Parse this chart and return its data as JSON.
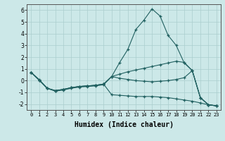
{
  "xlabel": "Humidex (Indice chaleur)",
  "ylabel": "",
  "xlim": [
    -0.5,
    23.5
  ],
  "ylim": [
    -2.5,
    6.5
  ],
  "yticks": [
    -2,
    -1,
    0,
    1,
    2,
    3,
    4,
    5,
    6
  ],
  "xticks": [
    0,
    1,
    2,
    3,
    4,
    5,
    6,
    7,
    8,
    9,
    10,
    11,
    12,
    13,
    14,
    15,
    16,
    17,
    18,
    19,
    20,
    21,
    22,
    23
  ],
  "background_color": "#cce8e8",
  "grid_color": "#aacece",
  "line_color": "#206060",
  "lines": [
    {
      "x": [
        0,
        1,
        2,
        3,
        4,
        5,
        6,
        7,
        8,
        9,
        10,
        11,
        12,
        13,
        14,
        15,
        16,
        17,
        18,
        19,
        20,
        21,
        22,
        23
      ],
      "y": [
        0.7,
        0.1,
        -0.65,
        -0.9,
        -0.8,
        -0.65,
        -0.55,
        -0.5,
        -0.45,
        -0.35,
        0.35,
        1.55,
        2.65,
        4.35,
        5.15,
        6.1,
        5.5,
        3.85,
        3.0,
        1.5,
        0.85,
        -1.45,
        -2.05,
        -2.15
      ]
    },
    {
      "x": [
        0,
        1,
        2,
        3,
        4,
        5,
        6,
        7,
        8,
        9,
        10,
        11,
        12,
        13,
        14,
        15,
        16,
        17,
        18,
        19,
        20,
        21,
        22,
        23
      ],
      "y": [
        0.7,
        0.05,
        -0.65,
        -0.85,
        -0.75,
        -0.6,
        -0.5,
        -0.45,
        -0.4,
        -0.3,
        0.35,
        0.55,
        0.75,
        0.9,
        1.05,
        1.2,
        1.35,
        1.5,
        1.65,
        1.55,
        0.85,
        -1.45,
        -2.05,
        -2.15
      ]
    },
    {
      "x": [
        0,
        1,
        2,
        3,
        4,
        5,
        6,
        7,
        8,
        9,
        10,
        11,
        12,
        13,
        14,
        15,
        16,
        17,
        18,
        19,
        20,
        21,
        22,
        23
      ],
      "y": [
        0.7,
        0.05,
        -0.65,
        -0.85,
        -0.75,
        -0.6,
        -0.5,
        -0.45,
        -0.4,
        -0.3,
        0.35,
        0.2,
        0.1,
        0.0,
        -0.05,
        -0.1,
        -0.05,
        0.0,
        0.1,
        0.25,
        0.85,
        -1.45,
        -2.05,
        -2.15
      ]
    },
    {
      "x": [
        0,
        1,
        2,
        3,
        4,
        5,
        6,
        7,
        8,
        9,
        10,
        11,
        12,
        13,
        14,
        15,
        16,
        17,
        18,
        19,
        20,
        21,
        22,
        23
      ],
      "y": [
        0.7,
        0.05,
        -0.65,
        -0.85,
        -0.75,
        -0.6,
        -0.5,
        -0.45,
        -0.4,
        -0.3,
        -1.2,
        -1.25,
        -1.3,
        -1.35,
        -1.35,
        -1.35,
        -1.4,
        -1.45,
        -1.55,
        -1.65,
        -1.75,
        -1.9,
        -2.05,
        -2.15
      ]
    }
  ]
}
